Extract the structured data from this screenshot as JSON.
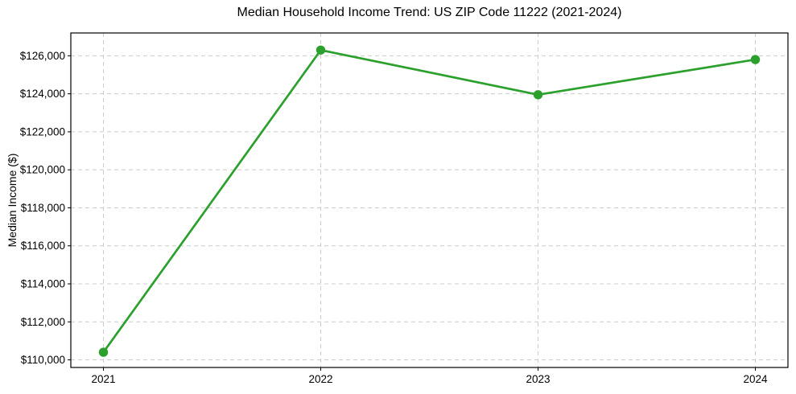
{
  "chart_data": {
    "type": "line",
    "title": "Median Household Income Trend: US ZIP Code 11222 (2021-2024)",
    "xlabel": "",
    "ylabel": "Median Income ($)",
    "x": [
      2021,
      2022,
      2023,
      2024
    ],
    "categories": [
      "2021",
      "2022",
      "2023",
      "2024"
    ],
    "values": [
      110400,
      126300,
      123950,
      125800
    ],
    "xlim": [
      2020.85,
      2024.15
    ],
    "ylim": [
      109600,
      127200
    ],
    "yticks": [
      110000,
      112000,
      114000,
      116000,
      118000,
      120000,
      122000,
      124000,
      126000
    ],
    "ytick_labels": [
      "$110,000",
      "$112,000",
      "$114,000",
      "$116,000",
      "$118,000",
      "$120,000",
      "$122,000",
      "$124,000",
      "$126,000"
    ],
    "grid": true,
    "legend": "none",
    "line_color": "#2ca02c",
    "grid_color": "#cccccc",
    "axis_color": "#000000",
    "background_color": "#ffffff",
    "marker": "circle"
  }
}
